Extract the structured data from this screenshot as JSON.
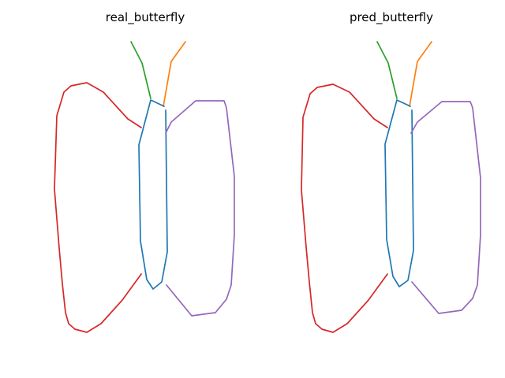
{
  "colors": {
    "background": "#ffffff",
    "body": "#1f77b4",
    "left_antenna": "#2ca02c",
    "right_antenna": "#ff7f0e",
    "left_wing": "#d62728",
    "right_wing": "#9467bd"
  },
  "panels": [
    {
      "id": "real",
      "title": "real_butterfly"
    },
    {
      "id": "pred",
      "title": "pred_butterfly"
    }
  ]
}
